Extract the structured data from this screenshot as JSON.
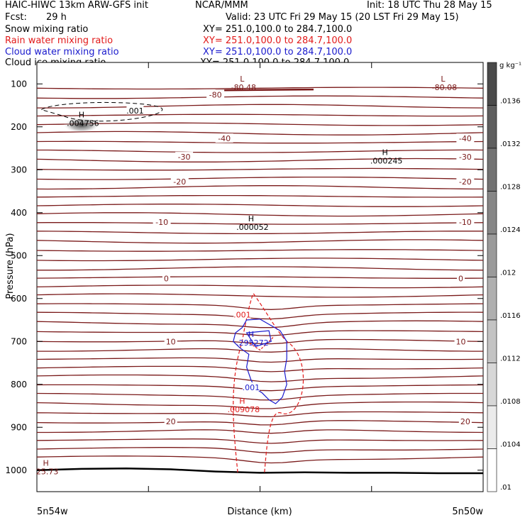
{
  "header": {
    "title": "HAIC-HIWC 13km ARW-GFS init",
    "org": "NCAR/MMM",
    "init": "Init: 18 UTC Thu 28 May 15",
    "fcst_label": "Fcst:",
    "fcst_value": "29 h",
    "valid": "Valid: 23 UTC Fri 29 May 15 (20 LST Fri 29 May 15)",
    "fields": [
      {
        "name": "Snow mixing ratio",
        "xy": "XY= 251.0,100.0 to 284.7,100.0",
        "color": "#000000"
      },
      {
        "name": "Rain water mixing ratio",
        "xy": "XY= 251.0,100.0 to 284.7,100.0",
        "color": "#e21a1a"
      },
      {
        "name": "Cloud water mixing ratio",
        "xy": "XY= 251.0,100.0 to 284.7,100.0",
        "color": "#1a1acd"
      },
      {
        "name": "Cloud ice mixing ratio",
        "xy": "XY= 251.0,100.0 to 284.7,100.0",
        "color": "#000000"
      }
    ]
  },
  "chart_data": {
    "type": "contour cross-section",
    "xlabel": "Distance (km)",
    "ylabel": "Pressure (hPa)",
    "x_ticks": [
      "5n54w",
      "5n50w"
    ],
    "y_ticks": [
      100,
      200,
      300,
      400,
      500,
      600,
      700,
      800,
      900,
      1000
    ],
    "ylim": [
      1050,
      50
    ],
    "colorbar": {
      "unit": "g kg⁻¹",
      "ticks": [
        ".0136",
        ".0132",
        ".0128",
        ".0124",
        ".012",
        ".0116",
        ".0112",
        ".0108",
        ".0104",
        ".01"
      ],
      "top_color": "#4a4a4a",
      "bottom_color": "#ffffff"
    },
    "temperature_contours": {
      "color": "#7a1a1a",
      "labels": [
        {
          "text": "-80",
          "p": 125,
          "x": 0.4
        },
        {
          "text": "-40",
          "p": 227,
          "x": 0.42
        },
        {
          "text": "-40",
          "p": 227,
          "x": 0.96
        },
        {
          "text": "-30",
          "p": 270,
          "x": 0.33
        },
        {
          "text": "-30",
          "p": 270,
          "x": 0.96
        },
        {
          "text": "-20",
          "p": 328,
          "x": 0.32
        },
        {
          "text": "-20",
          "p": 328,
          "x": 0.96
        },
        {
          "text": "-10",
          "p": 422,
          "x": 0.28
        },
        {
          "text": "-10",
          "p": 422,
          "x": 0.96
        },
        {
          "text": "0",
          "p": 553,
          "x": 0.29
        },
        {
          "text": "0",
          "p": 553,
          "x": 0.95
        },
        {
          "text": "10",
          "p": 700,
          "x": 0.3
        },
        {
          "text": "10",
          "p": 700,
          "x": 0.95
        },
        {
          "text": "20",
          "p": 886,
          "x": 0.3
        },
        {
          "text": "20",
          "p": 886,
          "x": 0.96
        }
      ]
    },
    "extrema": [
      {
        "kind": "L",
        "value": "-80.48",
        "p": 95,
        "x": 0.46,
        "color": "#7a1a1a"
      },
      {
        "kind": "L",
        "value": "-80.08",
        "p": 95,
        "x": 0.91,
        "color": "#7a1a1a"
      },
      {
        "kind": "H",
        "value": ".004756",
        "p": 178,
        "x": 0.1,
        "color": "#000000"
      },
      {
        "kind": "H",
        "value": ".000245",
        "p": 266,
        "x": 0.78,
        "color": "#000000"
      },
      {
        "kind": "H",
        "value": ".000052",
        "p": 420,
        "x": 0.48,
        "color": "#000000"
      },
      {
        "kind": "H",
        "value": ".295272",
        "p": 690,
        "x": 0.48,
        "color": "#1a1acd"
      },
      {
        "kind": "H",
        "value": ".009078",
        "p": 845,
        "x": 0.46,
        "color": "#e21a1a"
      },
      {
        "kind": "H",
        "value": "25.73",
        "p": 990,
        "x": 0.02,
        "color": "#7a1a1a"
      }
    ],
    "contour_labels": [
      {
        "text": ".001",
        "p": 162,
        "x": 0.22,
        "color": "#000000"
      },
      {
        "text": ".001",
        "p": 638,
        "x": 0.46,
        "color": "#e21a1a"
      },
      {
        "text": ".001",
        "p": 807,
        "x": 0.48,
        "color": "#1a1acd"
      }
    ],
    "surface_pressure_hPa": [
      1000,
      997,
      996,
      998,
      1003,
      1006,
      1005,
      1006,
      1006,
      1007,
      1007
    ],
    "grid": true
  }
}
